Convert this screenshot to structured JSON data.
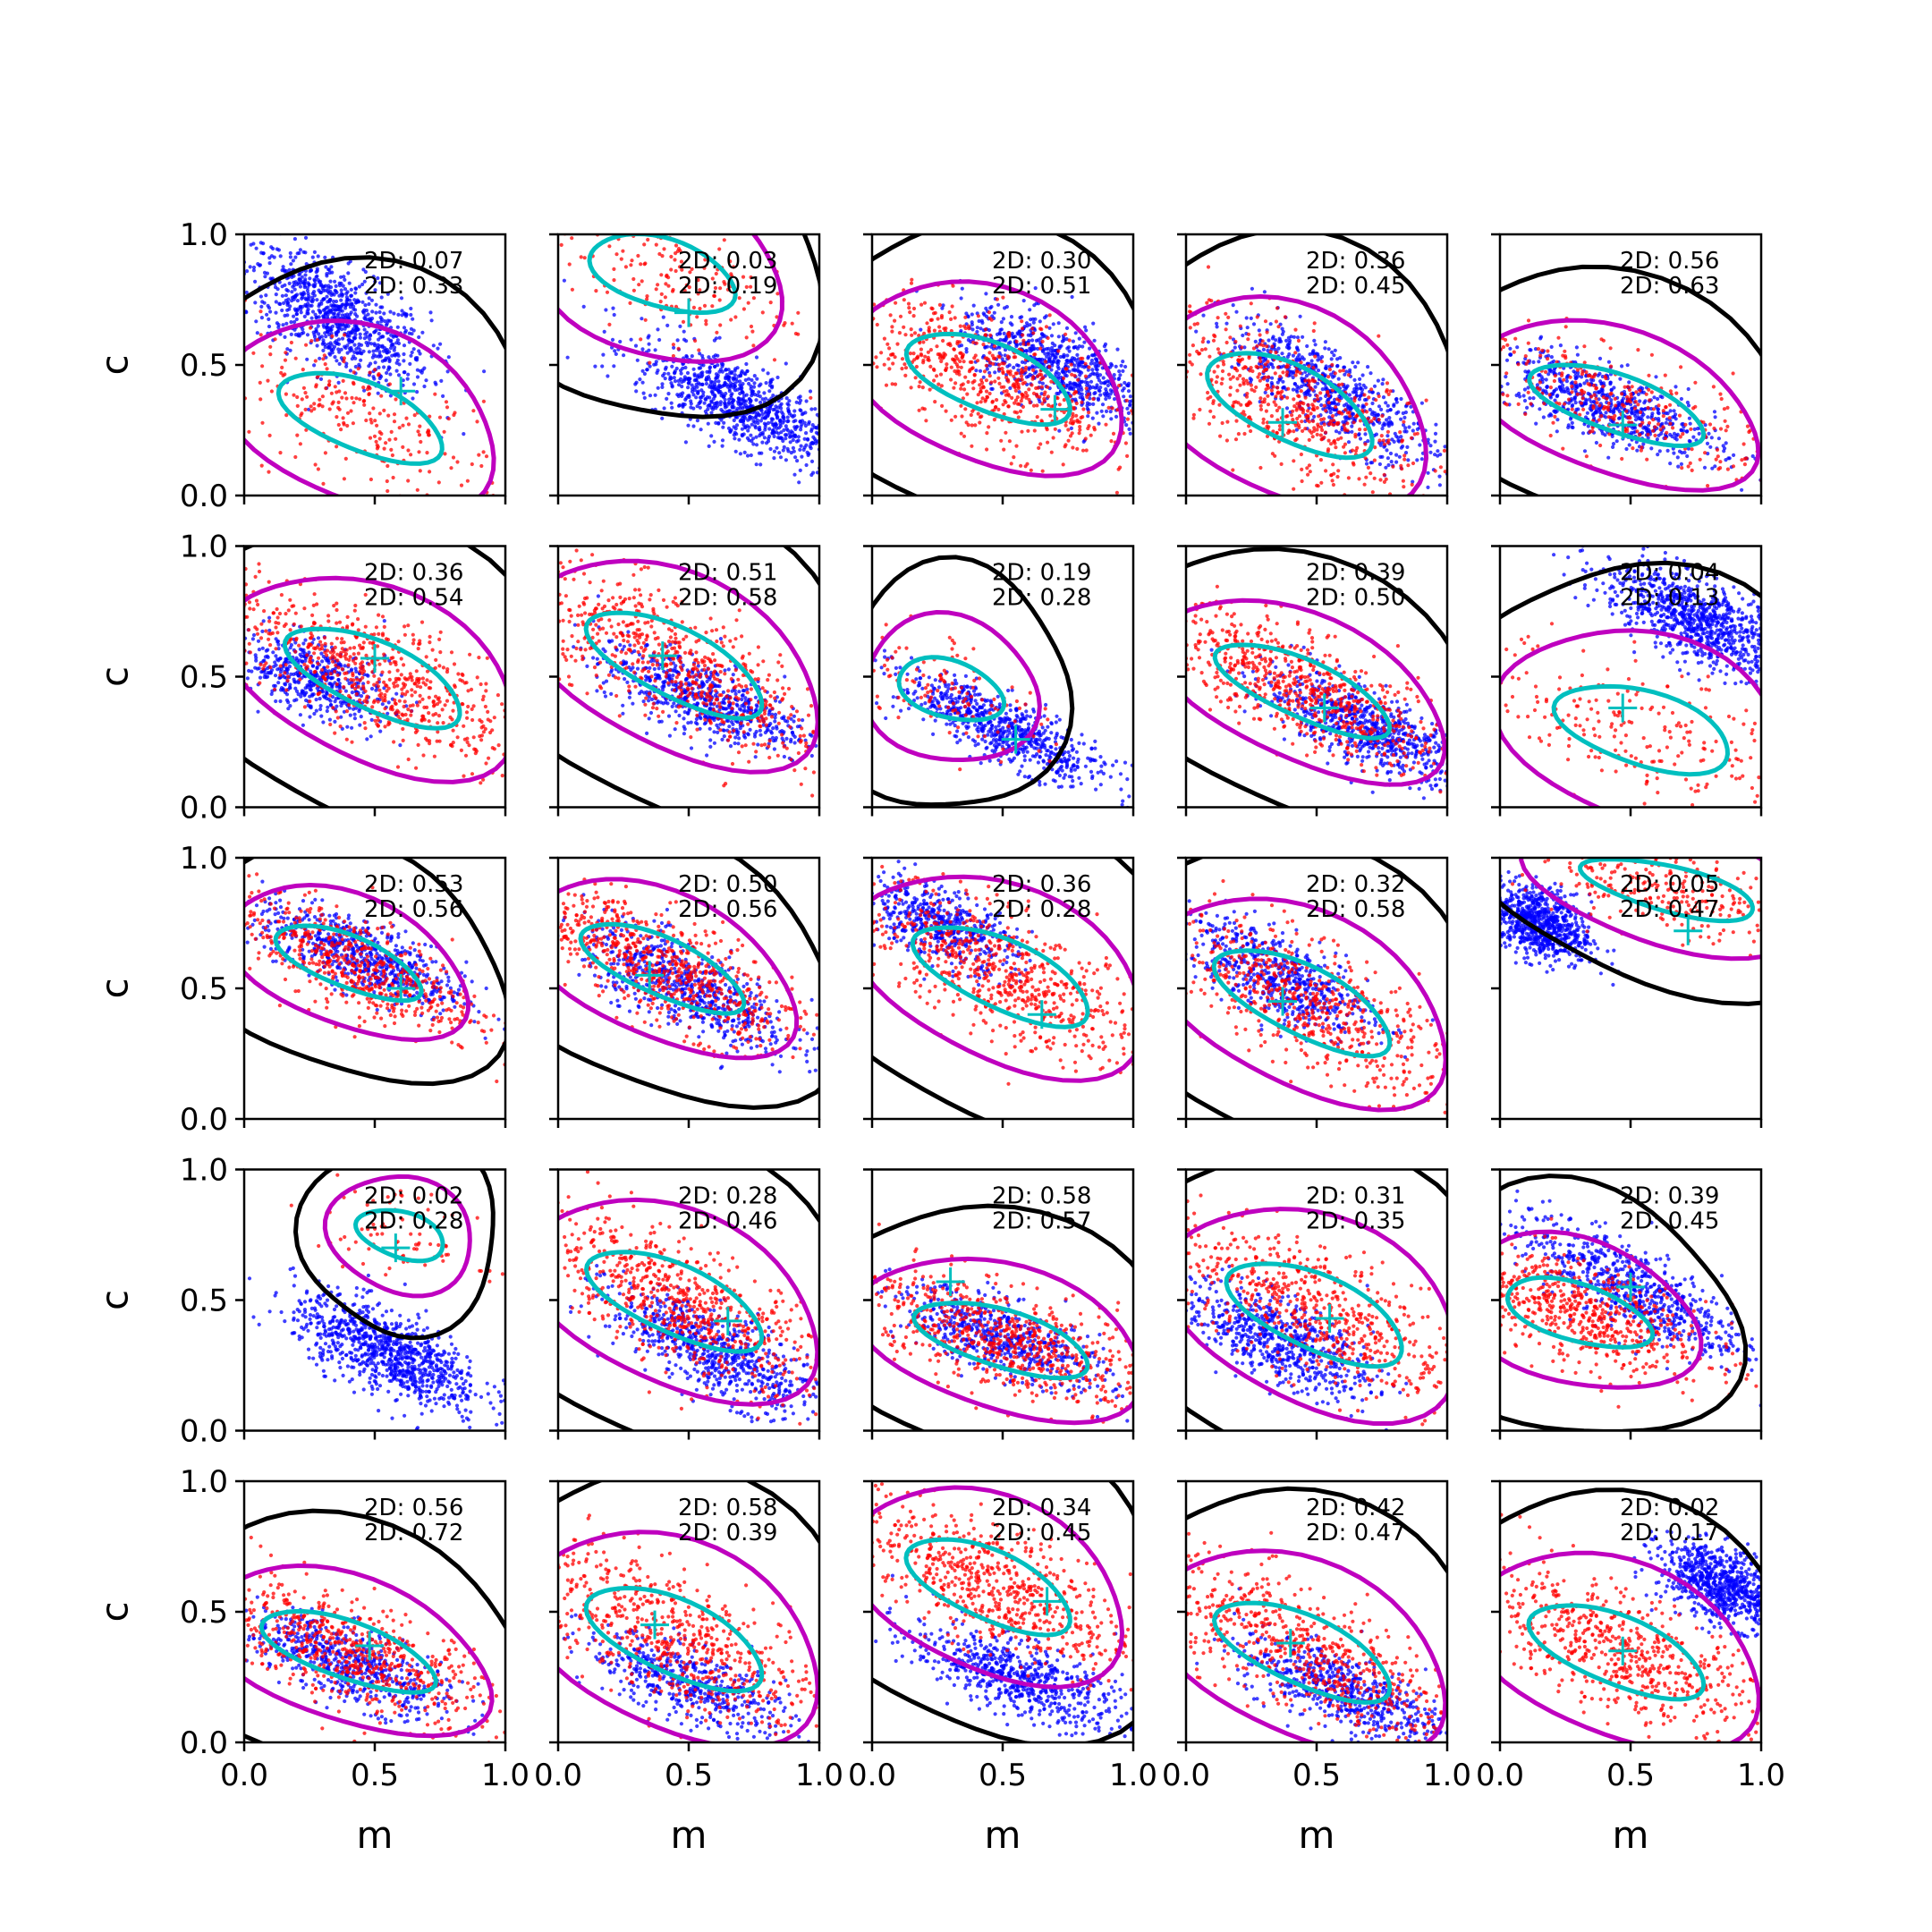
{
  "figure": {
    "rows": 5,
    "cols": 5,
    "xlabel": "m",
    "ylabel": "c",
    "xlim": [
      0.0,
      1.0
    ],
    "ylim": [
      0.0,
      1.0
    ],
    "x_tick_labels": [
      "0.0",
      "0.5",
      "1.0"
    ],
    "y_tick_labels": [
      "0.0",
      "0.5",
      "1.0"
    ],
    "annotation_prefix": "2D: ",
    "colors": {
      "scatter_a": "#0000ff",
      "scatter_b": "#ff0000",
      "contour_outer": "#000000",
      "contour_mid": "#bf00bf",
      "contour_inner": "#00bfbf",
      "marker": "#00bfbf"
    }
  },
  "chart_data": {
    "type": "scatter",
    "description_series": [
      "blue points",
      "red points",
      "black contour",
      "magenta contour",
      "cyan contour",
      "cyan cross marker"
    ],
    "panels": [
      {
        "row": 0,
        "col": 0,
        "stat1": "0.07",
        "stat2": "0.33",
        "blue": {
          "m": 0.35,
          "c": 0.68,
          "sm": 0.18,
          "sc": 0.1,
          "tilt": -0.5,
          "n": 900
        },
        "red": {
          "m": 0.45,
          "c": 0.3,
          "sm": 0.28,
          "sc": 0.12,
          "tilt": -0.4,
          "n": 260
        },
        "marker": {
          "m": 0.6,
          "c": 0.4
        }
      },
      {
        "row": 0,
        "col": 1,
        "stat1": "0.03",
        "stat2": "0.19",
        "blue": {
          "m": 0.7,
          "c": 0.35,
          "sm": 0.2,
          "sc": 0.08,
          "tilt": -0.45,
          "n": 900
        },
        "red": {
          "m": 0.4,
          "c": 0.85,
          "sm": 0.25,
          "sc": 0.12,
          "tilt": -0.3,
          "n": 200
        },
        "marker": {
          "m": 0.5,
          "c": 0.7
        }
      },
      {
        "row": 0,
        "col": 2,
        "stat1": "0.30",
        "stat2": "0.51",
        "blue": {
          "m": 0.7,
          "c": 0.5,
          "sm": 0.18,
          "sc": 0.08,
          "tilt": -0.4,
          "n": 700
        },
        "red": {
          "m": 0.45,
          "c": 0.45,
          "sm": 0.28,
          "sc": 0.12,
          "tilt": -0.4,
          "n": 650
        },
        "marker": {
          "m": 0.7,
          "c": 0.33
        }
      },
      {
        "row": 0,
        "col": 3,
        "stat1": "0.36",
        "stat2": "0.45",
        "blue": {
          "m": 0.55,
          "c": 0.4,
          "sm": 0.2,
          "sc": 0.08,
          "tilt": -0.55,
          "n": 650
        },
        "red": {
          "m": 0.4,
          "c": 0.35,
          "sm": 0.28,
          "sc": 0.13,
          "tilt": -0.5,
          "n": 600
        },
        "marker": {
          "m": 0.37,
          "c": 0.28
        }
      },
      {
        "row": 0,
        "col": 4,
        "stat1": "0.56",
        "stat2": "0.63",
        "blue": {
          "m": 0.4,
          "c": 0.35,
          "sm": 0.22,
          "sc": 0.07,
          "tilt": -0.35,
          "n": 650
        },
        "red": {
          "m": 0.45,
          "c": 0.35,
          "sm": 0.3,
          "sc": 0.1,
          "tilt": -0.35,
          "n": 320
        },
        "marker": {
          "m": 0.47,
          "c": 0.27
        }
      },
      {
        "row": 1,
        "col": 0,
        "stat1": "0.36",
        "stat2": "0.54",
        "blue": {
          "m": 0.25,
          "c": 0.5,
          "sm": 0.15,
          "sc": 0.07,
          "tilt": -0.3,
          "n": 500
        },
        "red": {
          "m": 0.5,
          "c": 0.5,
          "sm": 0.3,
          "sc": 0.12,
          "tilt": -0.45,
          "n": 700
        },
        "marker": {
          "m": 0.5,
          "c": 0.57
        }
      },
      {
        "row": 1,
        "col": 1,
        "stat1": "0.51",
        "stat2": "0.58",
        "blue": {
          "m": 0.55,
          "c": 0.42,
          "sm": 0.2,
          "sc": 0.07,
          "tilt": -0.35,
          "n": 650
        },
        "red": {
          "m": 0.45,
          "c": 0.55,
          "sm": 0.3,
          "sc": 0.12,
          "tilt": -0.5,
          "n": 650
        },
        "marker": {
          "m": 0.4,
          "c": 0.58
        }
      },
      {
        "row": 1,
        "col": 2,
        "stat1": "0.19",
        "stat2": "0.28",
        "blue": {
          "m": 0.5,
          "c": 0.3,
          "sm": 0.2,
          "sc": 0.06,
          "tilt": -0.45,
          "n": 700
        },
        "red": {
          "m": 0.3,
          "c": 0.45,
          "sm": 0.18,
          "sc": 0.1,
          "tilt": -0.3,
          "n": 120
        },
        "marker": {
          "m": 0.55,
          "c": 0.26
        }
      },
      {
        "row": 1,
        "col": 3,
        "stat1": "0.39",
        "stat2": "0.50",
        "blue": {
          "m": 0.7,
          "c": 0.3,
          "sm": 0.2,
          "sc": 0.07,
          "tilt": -0.4,
          "n": 700
        },
        "red": {
          "m": 0.45,
          "c": 0.45,
          "sm": 0.3,
          "sc": 0.1,
          "tilt": -0.45,
          "n": 700
        },
        "marker": {
          "m": 0.53,
          "c": 0.38
        }
      },
      {
        "row": 1,
        "col": 4,
        "stat1": "0.04",
        "stat2": "0.13",
        "blue": {
          "m": 0.75,
          "c": 0.72,
          "sm": 0.18,
          "sc": 0.08,
          "tilt": -0.4,
          "n": 900
        },
        "red": {
          "m": 0.55,
          "c": 0.3,
          "sm": 0.3,
          "sc": 0.13,
          "tilt": -0.3,
          "n": 230
        },
        "marker": {
          "m": 0.47,
          "c": 0.38
        }
      },
      {
        "row": 2,
        "col": 0,
        "stat1": "0.53",
        "stat2": "0.56",
        "blue": {
          "m": 0.45,
          "c": 0.62,
          "sm": 0.2,
          "sc": 0.07,
          "tilt": -0.4,
          "n": 650
        },
        "red": {
          "m": 0.4,
          "c": 0.6,
          "sm": 0.25,
          "sc": 0.09,
          "tilt": -0.4,
          "n": 600
        },
        "marker": {
          "m": 0.6,
          "c": 0.5
        }
      },
      {
        "row": 2,
        "col": 1,
        "stat1": "0.50",
        "stat2": "0.56",
        "blue": {
          "m": 0.5,
          "c": 0.5,
          "sm": 0.2,
          "sc": 0.08,
          "tilt": -0.45,
          "n": 650
        },
        "red": {
          "m": 0.4,
          "c": 0.58,
          "sm": 0.28,
          "sc": 0.1,
          "tilt": -0.45,
          "n": 700
        },
        "marker": {
          "m": 0.35,
          "c": 0.55
        }
      },
      {
        "row": 2,
        "col": 2,
        "stat1": "0.36",
        "stat2": "0.28",
        "blue": {
          "m": 0.25,
          "c": 0.75,
          "sm": 0.15,
          "sc": 0.07,
          "tilt": -0.35,
          "n": 500
        },
        "red": {
          "m": 0.5,
          "c": 0.55,
          "sm": 0.3,
          "sc": 0.12,
          "tilt": -0.45,
          "n": 700
        },
        "marker": {
          "m": 0.65,
          "c": 0.4
        }
      },
      {
        "row": 2,
        "col": 3,
        "stat1": "0.32",
        "stat2": "0.58",
        "blue": {
          "m": 0.35,
          "c": 0.55,
          "sm": 0.18,
          "sc": 0.08,
          "tilt": -0.45,
          "n": 600
        },
        "red": {
          "m": 0.45,
          "c": 0.45,
          "sm": 0.3,
          "sc": 0.12,
          "tilt": -0.5,
          "n": 650
        },
        "marker": {
          "m": 0.37,
          "c": 0.45
        }
      },
      {
        "row": 2,
        "col": 4,
        "stat1": "0.05",
        "stat2": "0.47",
        "blue": {
          "m": 0.15,
          "c": 0.75,
          "sm": 0.1,
          "sc": 0.07,
          "tilt": -0.3,
          "n": 800
        },
        "red": {
          "m": 0.65,
          "c": 0.88,
          "sm": 0.3,
          "sc": 0.08,
          "tilt": -0.25,
          "n": 300
        },
        "marker": {
          "m": 0.72,
          "c": 0.72
        }
      },
      {
        "row": 3,
        "col": 0,
        "stat1": "0.02",
        "stat2": "0.28",
        "blue": {
          "m": 0.55,
          "c": 0.3,
          "sm": 0.18,
          "sc": 0.08,
          "tilt": -0.4,
          "n": 900
        },
        "red": {
          "m": 0.6,
          "c": 0.75,
          "sm": 0.15,
          "sc": 0.08,
          "tilt": -0.3,
          "n": 80
        },
        "marker": {
          "m": 0.58,
          "c": 0.7
        }
      },
      {
        "row": 3,
        "col": 1,
        "stat1": "0.28",
        "stat2": "0.46",
        "blue": {
          "m": 0.6,
          "c": 0.3,
          "sm": 0.2,
          "sc": 0.08,
          "tilt": -0.45,
          "n": 700
        },
        "red": {
          "m": 0.45,
          "c": 0.5,
          "sm": 0.3,
          "sc": 0.12,
          "tilt": -0.45,
          "n": 700
        },
        "marker": {
          "m": 0.65,
          "c": 0.42
        }
      },
      {
        "row": 3,
        "col": 2,
        "stat1": "0.58",
        "stat2": "0.57",
        "blue": {
          "m": 0.5,
          "c": 0.35,
          "sm": 0.2,
          "sc": 0.07,
          "tilt": -0.35,
          "n": 600
        },
        "red": {
          "m": 0.5,
          "c": 0.35,
          "sm": 0.3,
          "sc": 0.1,
          "tilt": -0.3,
          "n": 700
        },
        "marker": {
          "m": 0.3,
          "c": 0.57
        }
      },
      {
        "row": 3,
        "col": 3,
        "stat1": "0.31",
        "stat2": "0.35",
        "blue": {
          "m": 0.35,
          "c": 0.35,
          "sm": 0.18,
          "sc": 0.08,
          "tilt": -0.4,
          "n": 650
        },
        "red": {
          "m": 0.5,
          "c": 0.45,
          "sm": 0.3,
          "sc": 0.13,
          "tilt": -0.45,
          "n": 650
        },
        "marker": {
          "m": 0.55,
          "c": 0.43
        }
      },
      {
        "row": 3,
        "col": 4,
        "stat1": "0.39",
        "stat2": "0.45",
        "blue": {
          "m": 0.5,
          "c": 0.55,
          "sm": 0.22,
          "sc": 0.08,
          "tilt": -0.5,
          "n": 700
        },
        "red": {
          "m": 0.3,
          "c": 0.45,
          "sm": 0.25,
          "sc": 0.1,
          "tilt": -0.3,
          "n": 650
        },
        "marker": {
          "m": 0.5,
          "c": 0.55
        }
      },
      {
        "row": 4,
        "col": 0,
        "stat1": "0.56",
        "stat2": "0.72",
        "blue": {
          "m": 0.4,
          "c": 0.3,
          "sm": 0.2,
          "sc": 0.07,
          "tilt": -0.35,
          "n": 600
        },
        "red": {
          "m": 0.4,
          "c": 0.35,
          "sm": 0.3,
          "sc": 0.1,
          "tilt": -0.35,
          "n": 650
        },
        "marker": {
          "m": 0.48,
          "c": 0.37
        }
      },
      {
        "row": 4,
        "col": 1,
        "stat1": "0.58",
        "stat2": "0.39",
        "blue": {
          "m": 0.5,
          "c": 0.22,
          "sm": 0.2,
          "sc": 0.07,
          "tilt": -0.35,
          "n": 500
        },
        "red": {
          "m": 0.45,
          "c": 0.4,
          "sm": 0.3,
          "sc": 0.13,
          "tilt": -0.45,
          "n": 650
        },
        "marker": {
          "m": 0.37,
          "c": 0.45
        }
      },
      {
        "row": 4,
        "col": 2,
        "stat1": "0.34",
        "stat2": "0.45",
        "blue": {
          "m": 0.55,
          "c": 0.25,
          "sm": 0.2,
          "sc": 0.07,
          "tilt": -0.35,
          "n": 650
        },
        "red": {
          "m": 0.45,
          "c": 0.6,
          "sm": 0.28,
          "sc": 0.12,
          "tilt": -0.45,
          "n": 700
        },
        "marker": {
          "m": 0.67,
          "c": 0.54
        }
      },
      {
        "row": 4,
        "col": 3,
        "stat1": "0.42",
        "stat2": "0.47",
        "blue": {
          "m": 0.6,
          "c": 0.2,
          "sm": 0.2,
          "sc": 0.07,
          "tilt": -0.35,
          "n": 600
        },
        "red": {
          "m": 0.45,
          "c": 0.35,
          "sm": 0.3,
          "sc": 0.12,
          "tilt": -0.45,
          "n": 650
        },
        "marker": {
          "m": 0.4,
          "c": 0.38
        }
      },
      {
        "row": 4,
        "col": 4,
        "stat1": "0.02",
        "stat2": "0.17",
        "blue": {
          "m": 0.85,
          "c": 0.6,
          "sm": 0.12,
          "sc": 0.07,
          "tilt": -0.35,
          "n": 800
        },
        "red": {
          "m": 0.45,
          "c": 0.35,
          "sm": 0.3,
          "sc": 0.12,
          "tilt": -0.4,
          "n": 650
        },
        "marker": {
          "m": 0.47,
          "c": 0.35
        }
      }
    ]
  }
}
